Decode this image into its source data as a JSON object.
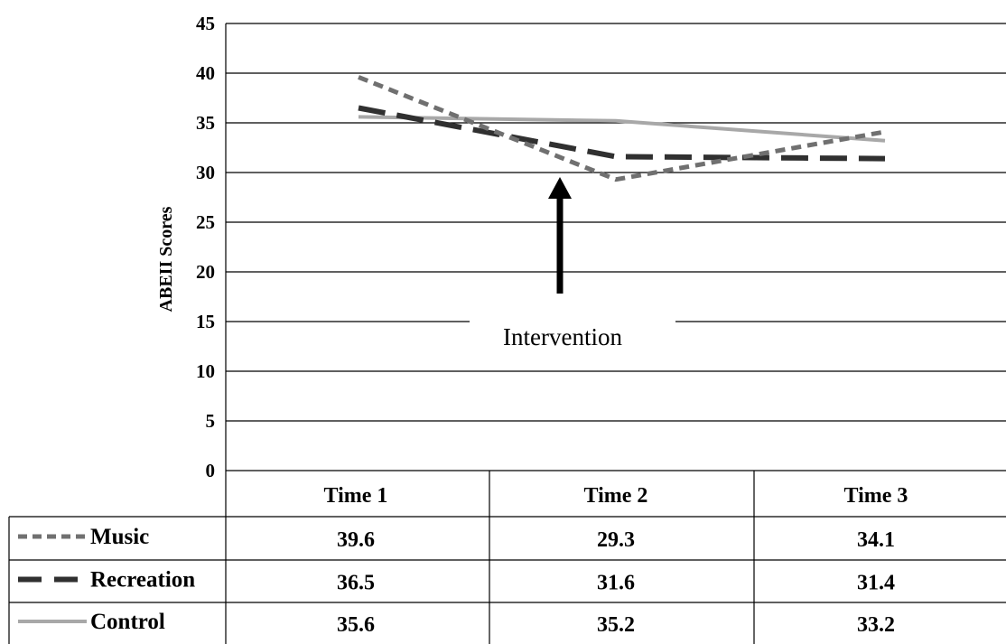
{
  "chart_data": {
    "type": "line",
    "ylabel": "ABEII Scores",
    "ylim": [
      0,
      45
    ],
    "yticks": [
      0,
      5,
      10,
      15,
      20,
      25,
      30,
      35,
      40,
      45
    ],
    "categories": [
      "Time 1",
      "Time 2",
      "Time 3"
    ],
    "grid": true,
    "annotation": {
      "text": "Intervention"
    },
    "series": [
      {
        "name": "Music",
        "values": [
          39.6,
          29.3,
          34.1
        ],
        "value_labels": [
          "39.6",
          "29.3",
          "34.1"
        ],
        "color": "#707070",
        "dash": "short"
      },
      {
        "name": "Recreation",
        "values": [
          36.5,
          31.6,
          31.4
        ],
        "value_labels": [
          "36.5",
          "31.6",
          "31.4"
        ],
        "color": "#303030",
        "dash": "long"
      },
      {
        "name": "Control",
        "values": [
          35.6,
          35.2,
          33.2
        ],
        "value_labels": [
          "35.6",
          "35.2",
          "33.2"
        ],
        "color": "#a8a8a8",
        "dash": "solid"
      }
    ],
    "legend": "data-table"
  }
}
